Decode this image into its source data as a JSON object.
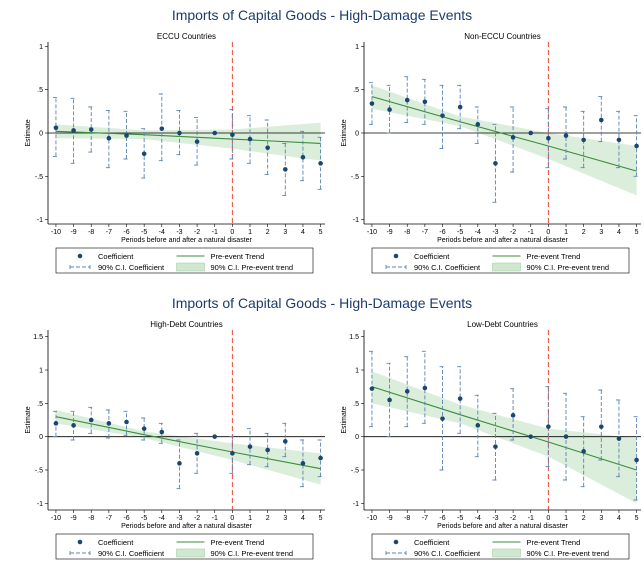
{
  "figure_titles": [
    "Imports of Capital Goods - High-Damage Events",
    "Imports of Capital Goods - High-Damage Events"
  ],
  "chart_data": [
    {
      "type": "event_study",
      "title": "ECCU Countries",
      "xlabel": "Periods before and after a natural disaster",
      "ylabel": "Estimate",
      "x": [
        -10,
        -9,
        -8,
        -7,
        -6,
        -5,
        -4,
        -3,
        -2,
        -1,
        0,
        1,
        2,
        3,
        4,
        5
      ],
      "xlim": [
        -10.45,
        5.25
      ],
      "xticks": [
        -10,
        -9,
        -8,
        -7,
        -6,
        -5,
        -4,
        -3,
        -2,
        -1,
        0,
        1,
        2,
        3,
        4,
        5
      ],
      "ylim": [
        -1.05,
        1.05
      ],
      "yticks": [
        1,
        {
          "value": 0.5,
          "label": ".5"
        },
        0,
        {
          "value": -0.5,
          "label": "-.5"
        },
        -1
      ],
      "event_line": 0,
      "series": [
        {
          "name": "Coefficient",
          "color": "#1a476f",
          "values": [
            0.06,
            0.03,
            0.04,
            -0.06,
            -0.03,
            -0.24,
            0.05,
            0.0,
            -0.1,
            0.0,
            -0.02,
            -0.07,
            -0.17,
            -0.42,
            -0.28,
            -0.35
          ]
        },
        {
          "name": "90% C.I. Coefficient",
          "color": "#5b84b1",
          "lower": [
            -0.27,
            -0.35,
            -0.22,
            -0.4,
            -0.3,
            -0.52,
            -0.32,
            -0.25,
            -0.37,
            null,
            -0.3,
            -0.35,
            -0.48,
            -0.72,
            -0.55,
            -0.65
          ],
          "upper": [
            0.41,
            0.4,
            0.3,
            0.26,
            0.25,
            0.05,
            0.45,
            0.26,
            0.18,
            null,
            0.27,
            0.2,
            0.15,
            -0.12,
            0.02,
            -0.05
          ]
        },
        {
          "name": "Pre-event Trend",
          "color": "#3c8c3c",
          "x": [
            -10,
            -5,
            0,
            5
          ],
          "values": [
            0.02,
            -0.02,
            -0.07,
            -0.12
          ]
        },
        {
          "name": "90% C.I. Pre-event trend",
          "color": "#cfe8cf",
          "x": [
            -10,
            -5,
            0,
            5
          ],
          "lower": [
            -0.06,
            -0.07,
            -0.18,
            -0.32
          ],
          "upper": [
            0.1,
            0.03,
            0.04,
            0.12
          ]
        }
      ]
    },
    {
      "type": "event_study",
      "title": "Non-ECCU Countries",
      "xlabel": "Periods before and after a natural disaster",
      "ylabel": "Estimate",
      "x": [
        -10,
        -9,
        -8,
        -7,
        -6,
        -5,
        -4,
        -3,
        -2,
        -1,
        0,
        1,
        2,
        3,
        4,
        5
      ],
      "xlim": [
        -10.45,
        5.25
      ],
      "xticks": [
        -10,
        -9,
        -8,
        -7,
        -6,
        -5,
        -4,
        -3,
        -2,
        -1,
        0,
        1,
        2,
        3,
        4,
        5
      ],
      "ylim": [
        -1.05,
        1.05
      ],
      "yticks": [
        1,
        {
          "value": 0.5,
          "label": ".5"
        },
        0,
        {
          "value": -0.5,
          "label": "-.5"
        },
        -1
      ],
      "event_line": 0,
      "series": [
        {
          "name": "Coefficient",
          "color": "#1a476f",
          "values": [
            0.34,
            0.27,
            0.38,
            0.36,
            0.2,
            0.3,
            0.1,
            -0.35,
            -0.05,
            0.0,
            -0.06,
            -0.03,
            -0.08,
            0.15,
            -0.08,
            -0.15
          ]
        },
        {
          "name": "90% C.I. Coefficient",
          "color": "#5b84b1",
          "lower": [
            0.1,
            0.0,
            0.12,
            0.1,
            -0.18,
            0.05,
            -0.12,
            -0.8,
            -0.45,
            null,
            -0.4,
            -0.3,
            -0.4,
            -0.1,
            -0.4,
            -0.5
          ],
          "upper": [
            0.58,
            0.55,
            0.65,
            0.62,
            0.55,
            0.55,
            0.3,
            0.1,
            0.3,
            null,
            0.28,
            0.3,
            0.25,
            0.42,
            0.25,
            0.2
          ]
        },
        {
          "name": "Pre-event Trend",
          "color": "#3c8c3c",
          "x": [
            -10,
            -5,
            0,
            5
          ],
          "values": [
            0.42,
            0.13,
            -0.15,
            -0.44
          ]
        },
        {
          "name": "90% C.I. Pre-event trend",
          "color": "#cfe8cf",
          "x": [
            -10,
            -5,
            0,
            5
          ],
          "lower": [
            0.28,
            0.08,
            -0.3,
            -0.72
          ],
          "upper": [
            0.55,
            0.19,
            0.0,
            -0.15
          ]
        }
      ]
    },
    {
      "type": "event_study",
      "title": "High-Debt Countries",
      "xlabel": "Periods before and after a natural disaster",
      "ylabel": "Estimate",
      "x": [
        -10,
        -9,
        -8,
        -7,
        -6,
        -5,
        -4,
        -3,
        -2,
        -1,
        0,
        1,
        2,
        3,
        4,
        5
      ],
      "xlim": [
        -10.45,
        5.25
      ],
      "xticks": [
        -10,
        -9,
        -8,
        -7,
        -6,
        -5,
        -4,
        -3,
        -2,
        -1,
        0,
        1,
        2,
        3,
        4,
        5
      ],
      "ylim": [
        -1.1,
        1.6
      ],
      "yticks": [
        1.5,
        1,
        {
          "value": 0.5,
          "label": ".5"
        },
        0,
        {
          "value": -0.5,
          "label": "-.5"
        },
        -1
      ],
      "event_line": 0,
      "series": [
        {
          "name": "Coefficient",
          "color": "#1a476f",
          "values": [
            0.2,
            0.17,
            0.25,
            0.2,
            0.22,
            0.12,
            0.07,
            -0.4,
            -0.25,
            0.0,
            -0.25,
            -0.15,
            -0.2,
            -0.07,
            -0.4,
            -0.32
          ]
        },
        {
          "name": "90% C.I. Coefficient",
          "color": "#5b84b1",
          "lower": [
            0.0,
            -0.05,
            0.05,
            -0.02,
            0.02,
            -0.05,
            -0.1,
            -0.78,
            -0.55,
            null,
            -0.55,
            -0.42,
            -0.45,
            -0.3,
            -0.75,
            -0.6
          ],
          "upper": [
            0.38,
            0.38,
            0.44,
            0.4,
            0.38,
            0.28,
            0.2,
            -0.05,
            0.05,
            null,
            0.0,
            0.12,
            0.05,
            0.2,
            -0.05,
            -0.05
          ]
        },
        {
          "name": "Pre-event Trend",
          "color": "#3c8c3c",
          "x": [
            -10,
            -5,
            0,
            5
          ],
          "values": [
            0.3,
            0.03,
            -0.23,
            -0.48
          ]
        },
        {
          "name": "90% C.I. Pre-event trend",
          "color": "#cfe8cf",
          "x": [
            -10,
            -5,
            0,
            5
          ],
          "lower": [
            0.2,
            -0.02,
            -0.35,
            -0.72
          ],
          "upper": [
            0.4,
            0.08,
            -0.1,
            -0.25
          ]
        }
      ]
    },
    {
      "type": "event_study",
      "title": "Low-Debt Countries",
      "xlabel": "Periods before and after a natural disaster",
      "ylabel": "Estimate",
      "x": [
        -10,
        -9,
        -8,
        -7,
        -6,
        -5,
        -4,
        -3,
        -2,
        -1,
        0,
        1,
        2,
        3,
        4,
        5
      ],
      "xlim": [
        -10.45,
        5.25
      ],
      "xticks": [
        -10,
        -9,
        -8,
        -7,
        -6,
        -5,
        -4,
        -3,
        -2,
        -1,
        0,
        1,
        2,
        3,
        4,
        5
      ],
      "ylim": [
        -1.1,
        1.6
      ],
      "yticks": [
        1.5,
        1,
        {
          "value": 0.5,
          "label": ".5"
        },
        0,
        {
          "value": -0.5,
          "label": "-.5"
        },
        -1
      ],
      "event_line": 0,
      "series": [
        {
          "name": "Coefficient",
          "color": "#1a476f",
          "values": [
            0.72,
            0.55,
            0.68,
            0.73,
            0.27,
            0.57,
            0.17,
            -0.15,
            0.32,
            0.0,
            0.15,
            0.0,
            -0.22,
            0.15,
            -0.03,
            -0.35
          ]
        },
        {
          "name": "90% C.I. Coefficient",
          "color": "#5b84b1",
          "lower": [
            0.15,
            0.0,
            0.15,
            0.2,
            -0.5,
            0.05,
            -0.3,
            -0.65,
            -0.05,
            null,
            -0.45,
            -0.65,
            -0.75,
            -0.35,
            -0.6,
            -0.95
          ],
          "upper": [
            1.28,
            1.1,
            1.2,
            1.28,
            1.05,
            1.05,
            0.62,
            0.35,
            0.72,
            null,
            0.75,
            0.65,
            0.3,
            0.7,
            0.55,
            0.3
          ]
        },
        {
          "name": "Pre-event Trend",
          "color": "#3c8c3c",
          "x": [
            -10,
            -5,
            0,
            5
          ],
          "values": [
            0.75,
            0.33,
            -0.08,
            -0.5
          ]
        },
        {
          "name": "90% C.I. Pre-event trend",
          "color": "#cfe8cf",
          "x": [
            -10,
            -5,
            0,
            5
          ],
          "lower": [
            0.5,
            0.2,
            -0.3,
            -1.0
          ],
          "upper": [
            0.98,
            0.48,
            0.12,
            -0.02
          ]
        }
      ]
    }
  ]
}
